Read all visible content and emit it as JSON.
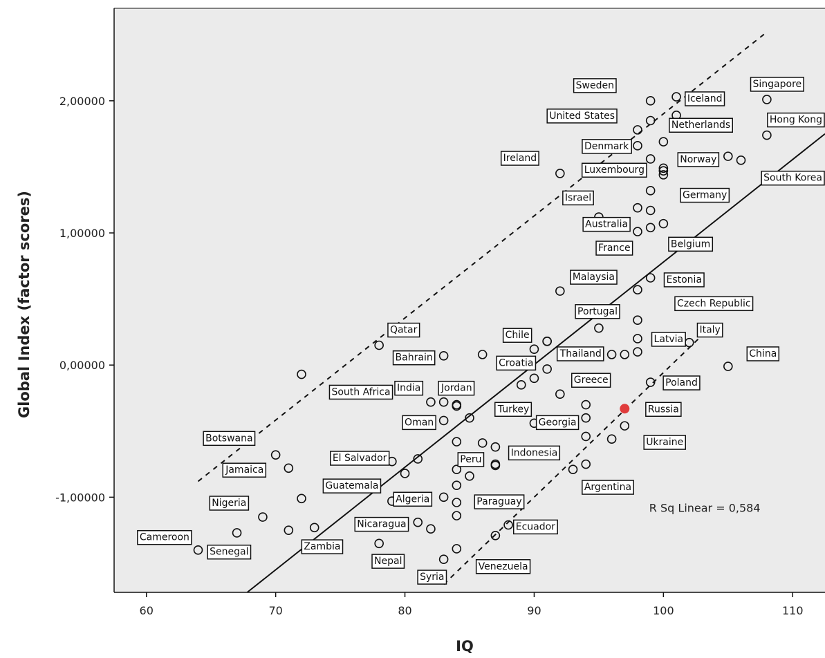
{
  "chart_data": {
    "type": "scatter",
    "xlabel": "IQ",
    "ylabel": "Global Index (factor scores)",
    "xlim": [
      57.5,
      112.5
    ],
    "ylim": [
      -1.72,
      2.7
    ],
    "x_ticks": [
      60,
      70,
      80,
      90,
      100,
      110
    ],
    "x_tick_labels": [
      "60",
      "70",
      "80",
      "90",
      "100",
      "110"
    ],
    "y_ticks": [
      2,
      1,
      0,
      -1
    ],
    "y_tick_labels": [
      "2,00000",
      "1,00000",
      "0,00000",
      "-1,00000"
    ],
    "annotation": "R Sq Linear = 0,584",
    "background": "#ebebeb",
    "highlight_color": "#e03c3c",
    "fit_line": {
      "x": [
        67.8,
        112.5
      ],
      "y": [
        -1.72,
        1.75
      ],
      "style": "solid"
    },
    "upper_band": {
      "x": [
        64,
        108
      ],
      "y": [
        -0.88,
        2.52
      ],
      "style": "dashed"
    },
    "lower_band": {
      "x": [
        83,
        104
      ],
      "y": [
        -1.66,
        0.32
      ],
      "style": "dashed"
    },
    "points": [
      {
        "x": 64,
        "y": -1.4
      },
      {
        "x": 67,
        "y": -1.27
      },
      {
        "x": 69,
        "y": -1.15
      },
      {
        "x": 70,
        "y": -0.68
      },
      {
        "x": 71,
        "y": -0.78
      },
      {
        "x": 71,
        "y": -1.25
      },
      {
        "x": 72,
        "y": -0.07
      },
      {
        "x": 72,
        "y": -1.01
      },
      {
        "x": 73,
        "y": -1.23
      },
      {
        "x": 78,
        "y": 0.15
      },
      {
        "x": 78,
        "y": -1.35
      },
      {
        "x": 79,
        "y": -1.03
      },
      {
        "x": 79,
        "y": -0.73
      },
      {
        "x": 80,
        "y": -0.82
      },
      {
        "x": 81,
        "y": -0.71
      },
      {
        "x": 81,
        "y": -1.19
      },
      {
        "x": 82,
        "y": -0.28
      },
      {
        "x": 82,
        "y": -1.24
      },
      {
        "x": 83,
        "y": 0.07
      },
      {
        "x": 83,
        "y": -0.28
      },
      {
        "x": 83,
        "y": -0.42
      },
      {
        "x": 83,
        "y": -1.0
      },
      {
        "x": 83,
        "y": -1.47
      },
      {
        "x": 84,
        "y": -0.3
      },
      {
        "x": 84,
        "y": -0.31
      },
      {
        "x": 84,
        "y": -0.58
      },
      {
        "x": 84,
        "y": -0.79
      },
      {
        "x": 84,
        "y": -0.91
      },
      {
        "x": 84,
        "y": -1.04
      },
      {
        "x": 84,
        "y": -1.14
      },
      {
        "x": 84,
        "y": -1.39
      },
      {
        "x": 85,
        "y": -0.4
      },
      {
        "x": 85,
        "y": -0.84
      },
      {
        "x": 86,
        "y": 0.08
      },
      {
        "x": 86,
        "y": -0.59
      },
      {
        "x": 87,
        "y": -0.62
      },
      {
        "x": 87,
        "y": -0.75
      },
      {
        "x": 87,
        "y": -0.76
      },
      {
        "x": 87,
        "y": -1.29
      },
      {
        "x": 88,
        "y": -1.21
      },
      {
        "x": 89,
        "y": -0.15
      },
      {
        "x": 90,
        "y": 0.12
      },
      {
        "x": 90,
        "y": -0.1
      },
      {
        "x": 90,
        "y": -0.44
      },
      {
        "x": 91,
        "y": 0.18
      },
      {
        "x": 91,
        "y": 0.18
      },
      {
        "x": 91,
        "y": -0.03
      },
      {
        "x": 92,
        "y": 1.45
      },
      {
        "x": 92,
        "y": 0.56
      },
      {
        "x": 92,
        "y": -0.22
      },
      {
        "x": 93,
        "y": -0.79
      },
      {
        "x": 94,
        "y": -0.3
      },
      {
        "x": 94,
        "y": -0.4
      },
      {
        "x": 94,
        "y": -0.54
      },
      {
        "x": 94,
        "y": -0.75
      },
      {
        "x": 95,
        "y": 1.12
      },
      {
        "x": 95,
        "y": 0.28
      },
      {
        "x": 96,
        "y": 0.08
      },
      {
        "x": 96,
        "y": -0.56
      },
      {
        "x": 97,
        "y": 0.08
      },
      {
        "x": 97,
        "y": -0.46
      },
      {
        "x": 98,
        "y": 1.78
      },
      {
        "x": 98,
        "y": 1.66
      },
      {
        "x": 98,
        "y": 1.19
      },
      {
        "x": 98,
        "y": 1.01
      },
      {
        "x": 98,
        "y": 0.57
      },
      {
        "x": 98,
        "y": 0.34
      },
      {
        "x": 98,
        "y": 0.2
      },
      {
        "x": 98,
        "y": 0.1
      },
      {
        "x": 99,
        "y": 2.0
      },
      {
        "x": 99,
        "y": 1.85
      },
      {
        "x": 99,
        "y": 1.56
      },
      {
        "x": 99,
        "y": 1.32
      },
      {
        "x": 99,
        "y": 1.17
      },
      {
        "x": 99,
        "y": 1.04
      },
      {
        "x": 99,
        "y": 0.66
      },
      {
        "x": 99,
        "y": -0.13
      },
      {
        "x": 100,
        "y": 1.69
      },
      {
        "x": 100,
        "y": 1.49
      },
      {
        "x": 100,
        "y": 1.47
      },
      {
        "x": 100,
        "y": 1.44
      },
      {
        "x": 100,
        "y": 1.07
      },
      {
        "x": 101,
        "y": 2.03
      },
      {
        "x": 101,
        "y": 1.89
      },
      {
        "x": 102,
        "y": 0.17
      },
      {
        "x": 105,
        "y": 1.58
      },
      {
        "x": 105,
        "y": -0.01
      },
      {
        "x": 106,
        "y": 1.55
      },
      {
        "x": 108,
        "y": 2.01
      },
      {
        "x": 108,
        "y": 1.74
      }
    ],
    "highlighted_points": [
      {
        "name": "Russia",
        "x": 97,
        "y": -0.33
      }
    ],
    "labels": [
      {
        "text": "Sweden",
        "x": 94.7,
        "y": 2.12
      },
      {
        "text": "Iceland",
        "x": 103.2,
        "y": 2.02
      },
      {
        "text": "Singapore",
        "x": 108.8,
        "y": 2.13
      },
      {
        "text": "United States",
        "x": 93.7,
        "y": 1.89
      },
      {
        "text": "Netherlands",
        "x": 102.9,
        "y": 1.82
      },
      {
        "text": "Hong Kong",
        "x": 110.7,
        "y": 1.86
      },
      {
        "text": "Denmark",
        "x": 95.6,
        "y": 1.66
      },
      {
        "text": "Ireland",
        "x": 88.9,
        "y": 1.57
      },
      {
        "text": "Norway",
        "x": 102.7,
        "y": 1.56
      },
      {
        "text": "Luxembourg",
        "x": 96.2,
        "y": 1.48
      },
      {
        "text": "South Korea",
        "x": 110.8,
        "y": 1.42
      },
      {
        "text": "Germany",
        "x": 103.2,
        "y": 1.29
      },
      {
        "text": "Israel",
        "x": 93.4,
        "y": 1.27
      },
      {
        "text": "Australia",
        "x": 95.6,
        "y": 1.07
      },
      {
        "text": "France",
        "x": 96.2,
        "y": 0.89
      },
      {
        "text": "Belgium",
        "x": 102.1,
        "y": 0.92
      },
      {
        "text": "Malaysia",
        "x": 94.6,
        "y": 0.67
      },
      {
        "text": "Estonia",
        "x": 101.6,
        "y": 0.65
      },
      {
        "text": "Czech Republic",
        "x": 103.9,
        "y": 0.47
      },
      {
        "text": "Portugal",
        "x": 94.9,
        "y": 0.41
      },
      {
        "text": "Italy",
        "x": 103.6,
        "y": 0.27
      },
      {
        "text": "Latvia",
        "x": 100.4,
        "y": 0.2
      },
      {
        "text": "China",
        "x": 107.7,
        "y": 0.09
      },
      {
        "text": "Qatar",
        "x": 79.9,
        "y": 0.27
      },
      {
        "text": "Chile",
        "x": 88.7,
        "y": 0.23
      },
      {
        "text": "Bahrain",
        "x": 80.7,
        "y": 0.06
      },
      {
        "text": "Thailand",
        "x": 93.6,
        "y": 0.09
      },
      {
        "text": "Croatia",
        "x": 88.6,
        "y": 0.02
      },
      {
        "text": "Greece",
        "x": 94.4,
        "y": -0.11
      },
      {
        "text": "Poland",
        "x": 101.4,
        "y": -0.13
      },
      {
        "text": "India",
        "x": 80.3,
        "y": -0.17
      },
      {
        "text": "Jordan",
        "x": 84.0,
        "y": -0.17
      },
      {
        "text": "South Africa",
        "x": 76.6,
        "y": -0.2
      },
      {
        "text": "Russia",
        "x": 100.0,
        "y": -0.33
      },
      {
        "text": "Turkey",
        "x": 88.4,
        "y": -0.33
      },
      {
        "text": "Oman",
        "x": 81.1,
        "y": -0.43
      },
      {
        "text": "Georgia",
        "x": 91.8,
        "y": -0.43
      },
      {
        "text": "Ukraine",
        "x": 100.1,
        "y": -0.58
      },
      {
        "text": "Botswana",
        "x": 66.4,
        "y": -0.55
      },
      {
        "text": "Indonesia",
        "x": 90.0,
        "y": -0.66
      },
      {
        "text": "El Salvador",
        "x": 76.5,
        "y": -0.7
      },
      {
        "text": "Peru",
        "x": 85.1,
        "y": -0.71
      },
      {
        "text": "Jamaica",
        "x": 67.6,
        "y": -0.79
      },
      {
        "text": "Argentina",
        "x": 95.7,
        "y": -0.92
      },
      {
        "text": "Guatemala",
        "x": 75.9,
        "y": -0.91
      },
      {
        "text": "Nigeria",
        "x": 66.4,
        "y": -1.04
      },
      {
        "text": "Algeria",
        "x": 80.6,
        "y": -1.01
      },
      {
        "text": "Paraguay",
        "x": 87.3,
        "y": -1.03
      },
      {
        "text": "Nicaragua",
        "x": 78.2,
        "y": -1.2
      },
      {
        "text": "Ecuador",
        "x": 90.1,
        "y": -1.22
      },
      {
        "text": "Cameroon",
        "x": 61.4,
        "y": -1.3
      },
      {
        "text": "Senegal",
        "x": 66.4,
        "y": -1.41
      },
      {
        "text": "Zambia",
        "x": 73.6,
        "y": -1.37
      },
      {
        "text": "Nepal",
        "x": 78.7,
        "y": -1.48
      },
      {
        "text": "Syria",
        "x": 82.1,
        "y": -1.6
      },
      {
        "text": "Venezuela",
        "x": 87.6,
        "y": -1.52
      }
    ]
  }
}
